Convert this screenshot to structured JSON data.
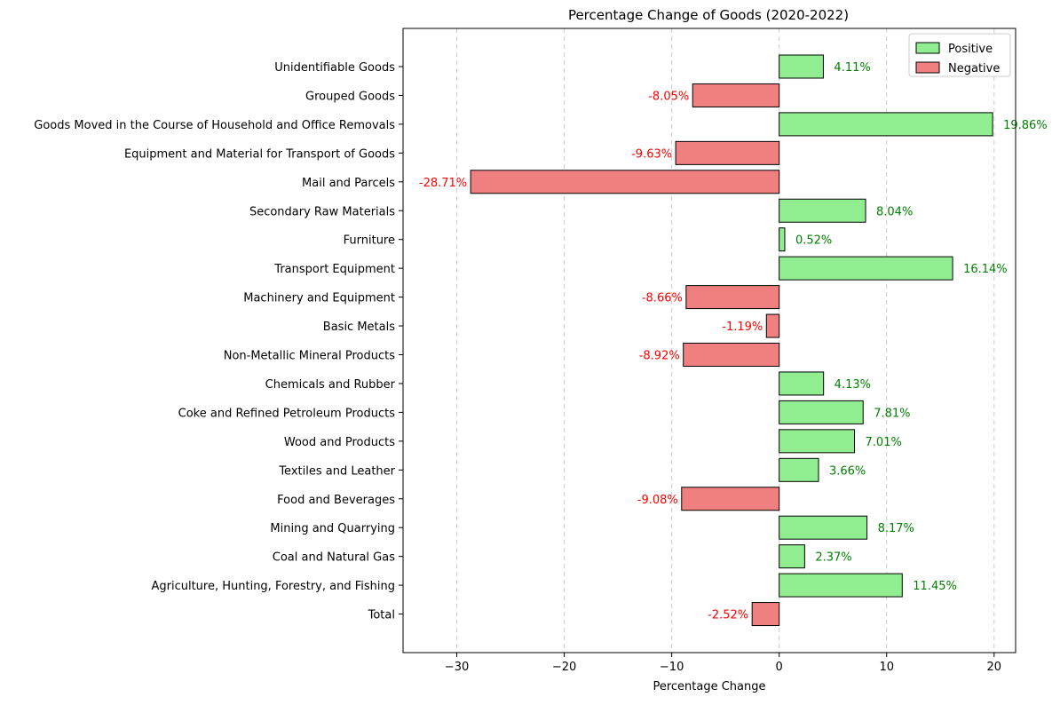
{
  "chart_data": {
    "type": "bar",
    "orientation": "horizontal",
    "title": "Percentage Change of Goods (2020-2022)",
    "xlabel": "Percentage Change",
    "ylabel": "",
    "xlim": [
      -35,
      22
    ],
    "xticks": [
      -30,
      -20,
      -10,
      0,
      10,
      20
    ],
    "xtick_labels": [
      "−30",
      "−20",
      "−10",
      "0",
      "10",
      "20"
    ],
    "grid": "x-dashed",
    "legend": {
      "placement": "top-right",
      "entries": [
        {
          "name": "Positive",
          "color": "#90ee90"
        },
        {
          "name": "Negative",
          "color": "#f08080"
        }
      ]
    },
    "colors": {
      "positive": "#90ee90",
      "negative": "#f08080",
      "positive_label": "#008000",
      "negative_label": "#ff0000",
      "edge": "#000000",
      "grid": "#cccccc"
    },
    "categories": [
      "Unidentifiable Goods",
      "Grouped Goods",
      "Goods Moved in the Course of Household and Office Removals",
      "Equipment and Material for Transport of Goods",
      "Mail and Parcels",
      "Secondary Raw Materials",
      "Furniture",
      "Transport Equipment",
      "Machinery and Equipment",
      "Basic Metals",
      "Non-Metallic Mineral Products",
      "Chemicals and Rubber",
      "Coke and Refined Petroleum Products",
      "Wood and Products",
      "Textiles and Leather",
      "Food and Beverages",
      "Mining and Quarrying",
      "Coal and Natural Gas",
      "Agriculture, Hunting, Forestry, and Fishing",
      "Total"
    ],
    "values": [
      4.11,
      -8.05,
      19.86,
      -9.63,
      -28.71,
      8.04,
      0.52,
      16.14,
      -8.66,
      -1.19,
      -8.92,
      4.13,
      7.81,
      7.01,
      3.66,
      -9.08,
      8.17,
      2.37,
      11.45,
      -2.52
    ],
    "value_labels": [
      "4.11%",
      "-8.05%",
      "19.86%",
      "-9.63%",
      "-28.71%",
      "8.04%",
      "0.52%",
      "16.14%",
      "-8.66%",
      "-1.19%",
      "-8.92%",
      "4.13%",
      "7.81%",
      "7.01%",
      "3.66%",
      "-9.08%",
      "8.17%",
      "2.37%",
      "11.45%",
      "-2.52%"
    ]
  }
}
